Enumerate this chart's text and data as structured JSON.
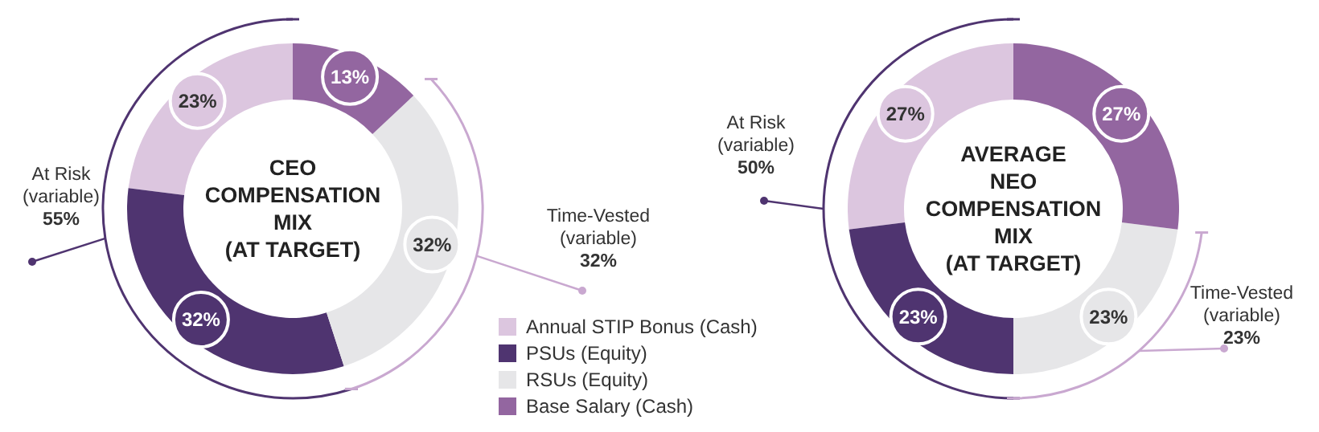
{
  "chart_data": [
    {
      "type": "donut",
      "title": "CEO COMPENSATION MIX (AT TARGET)",
      "categories": [
        "Annual STIP Bonus (Cash)",
        "PSUs (Equity)",
        "RSUs (Equity)",
        "Base Salary (Cash)"
      ],
      "values": [
        23,
        32,
        32,
        13
      ],
      "value_labels": [
        "23%",
        "32%",
        "32%",
        "13%"
      ],
      "colors": [
        "#dcc6df",
        "#4f3470",
        "#e6e6e8",
        "#9366a0"
      ],
      "legend": "right",
      "annotations": [
        "At Risk (variable) 55%",
        "Time-Vested (variable) 32%"
      ]
    },
    {
      "type": "donut",
      "title": "AVERAGE NEO COMPENSATION MIX (AT TARGET)",
      "categories": [
        null,
        null,
        null,
        null
      ],
      "values": [
        27,
        23,
        23,
        27
      ],
      "value_labels": [
        "27%",
        "23%",
        "23%",
        "27%"
      ],
      "colors": [
        "#dcc6df",
        "#4f3470",
        "#e6e6e8",
        "#9366a0"
      ],
      "annotations": [
        "At Risk (variable) 50%",
        "Time-Vested (variable) 23%"
      ]
    }
  ]
}
